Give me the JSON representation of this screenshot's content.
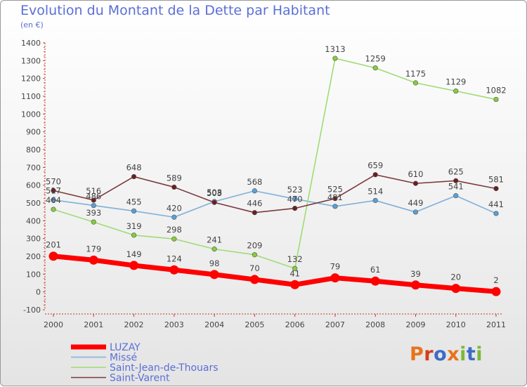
{
  "header": {
    "title": "Evolution du Montant de la Dette par Habitant",
    "subtitle": "(en €)"
  },
  "logo": {
    "text": "Proxiti",
    "colors": [
      "#e8731b",
      "#d43d1a",
      "#3c6cc6",
      "#e8731b",
      "#7cb83b",
      "#3c6cc6",
      "#7cb83b"
    ]
  },
  "chart_data": {
    "type": "line",
    "title": "Evolution du Montant de la Dette par Habitant",
    "subtitle": "(en €)",
    "xlabel": "",
    "ylabel": "",
    "categories": [
      "2000",
      "2001",
      "2002",
      "2003",
      "2004",
      "2005",
      "2006",
      "2007",
      "2008",
      "2009",
      "2010",
      "2011"
    ],
    "ylim": [
      -100,
      1400
    ],
    "yticks": [
      -100,
      0,
      100,
      200,
      300,
      400,
      500,
      600,
      700,
      800,
      900,
      1000,
      1100,
      1200,
      1300,
      1400
    ],
    "grid": false,
    "legend_position": "bottom-left",
    "series": [
      {
        "name": "Missé",
        "color": "#5a9fd6",
        "line_color": "#7fb0da",
        "values": [
          517,
          486,
          455,
          420,
          508,
          568,
          523,
          481,
          514,
          449,
          541,
          441
        ],
        "labels": [
          "517",
          "486",
          "455",
          "420",
          "508",
          "568",
          "523",
          "481",
          "514",
          "449",
          "541",
          "441"
        ]
      },
      {
        "name": "Saint-Jean-de-Thouars",
        "color": "#86cc3c",
        "line_color": "#9fdc74",
        "values": [
          464,
          393,
          319,
          298,
          241,
          209,
          132,
          1313,
          1259,
          1175,
          1129,
          1082
        ],
        "labels": [
          "464",
          "393",
          "319",
          "298",
          "241",
          "209",
          "132",
          "1313",
          "1259",
          "1175",
          "1129",
          "1082"
        ]
      },
      {
        "name": "Saint-Varent",
        "color": "#6b1e22",
        "line_color": "#7a3a3e",
        "values": [
          570,
          516,
          648,
          589,
          503,
          446,
          470,
          525,
          659,
          610,
          625,
          581
        ],
        "labels": [
          "570",
          "516",
          "648",
          "589",
          "503",
          "446",
          "470",
          "525",
          "659",
          "610",
          "625",
          "581"
        ]
      },
      {
        "name": "LUZAY",
        "color": "#ff0000",
        "line_color": "#ff0000",
        "values": [
          201,
          179,
          149,
          124,
          98,
          70,
          41,
          79,
          61,
          39,
          20,
          2
        ],
        "labels": [
          "201",
          "179",
          "149",
          "124",
          "98",
          "70",
          "41",
          "79",
          "61",
          "39",
          "20",
          "2"
        ]
      }
    ],
    "legend": [
      "LUZAY",
      "Missé",
      "Saint-Jean-de-Thouars",
      "Saint-Varent"
    ]
  }
}
